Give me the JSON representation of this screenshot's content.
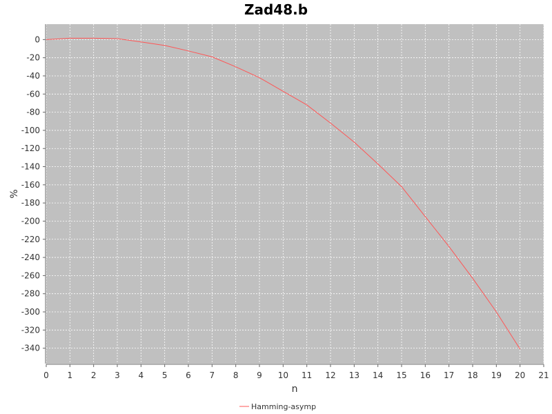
{
  "chart_data": {
    "type": "line",
    "title": "Zad48.b",
    "xlabel": "n",
    "ylabel": "%",
    "xlim": [
      0,
      21
    ],
    "ylim": [
      -357,
      17
    ],
    "x_ticks": [
      0,
      1,
      2,
      3,
      4,
      5,
      6,
      7,
      8,
      9,
      10,
      11,
      12,
      13,
      14,
      15,
      16,
      17,
      18,
      19,
      20,
      21
    ],
    "y_ticks": [
      0,
      -20,
      -40,
      -60,
      -80,
      -100,
      -120,
      -140,
      -160,
      -180,
      -200,
      -220,
      -240,
      -260,
      -280,
      -300,
      -320,
      -340
    ],
    "grid": true,
    "legend_position": "bottom",
    "colors": {
      "plot_bg": "#c0c0c0",
      "grid": "#ffffff",
      "series": "#ff5555"
    },
    "series": [
      {
        "name": "Hamming-asymp",
        "x": [
          0,
          1,
          2,
          3,
          4,
          5,
          6,
          7,
          8,
          9,
          10,
          11,
          12,
          13,
          14,
          15,
          16,
          17,
          18,
          19,
          20
        ],
        "values": [
          0,
          1.5,
          1.5,
          1,
          -2.5,
          -6.5,
          -12.5,
          -19,
          -30,
          -42,
          -57,
          -72,
          -92,
          -113,
          -137,
          -162,
          -195,
          -228,
          -263,
          -300,
          -341
        ]
      }
    ]
  }
}
